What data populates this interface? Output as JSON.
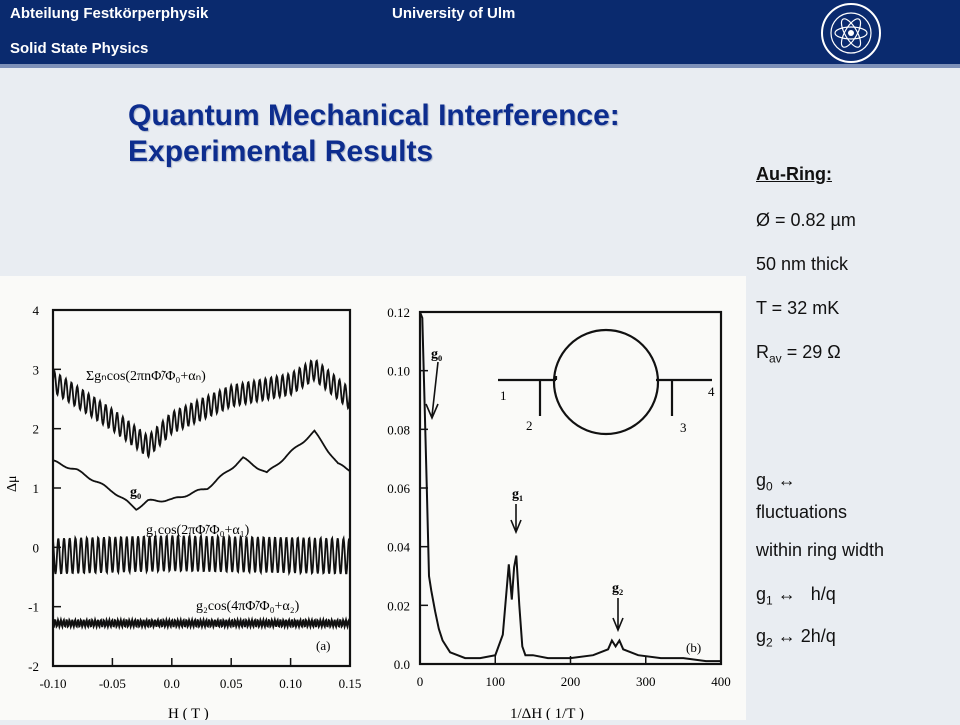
{
  "header": {
    "dept": "Abteilung Festkörperphysik",
    "dept_en": "Solid State Physics",
    "university": "University of Ulm"
  },
  "title": {
    "line1": "Quantum Mechanical Interference:",
    "line2": "Experimental Results"
  },
  "info": {
    "heading": "Au-Ring:",
    "diameter": "Ø = 0.82 µm",
    "thickness": "50 nm thick",
    "temperature": "T = 32 mK",
    "resistance_label": "R",
    "resistance_sub": "av",
    "resistance_value": "= 29 Ω",
    "g0_prefix": "g",
    "g0_sub": "0",
    "g0_text": "↔",
    "g0_line2": "fluctuations",
    "g0_line3": "within ring width",
    "g1_prefix": "g",
    "g1_sub": "1",
    "g1_text": "↔   h/q",
    "g2_prefix": "g",
    "g2_sub": "2",
    "g2_text": "↔ 2h/q"
  },
  "colors": {
    "header_bg": "#0a2a6e",
    "title": "#0d2d8e",
    "ink": "#111111"
  },
  "chart_data": [
    {
      "type": "line",
      "panel": "(a)",
      "xlabel": "H ( T )",
      "ylabel": "Δμ",
      "xlim": [
        -0.1,
        0.15
      ],
      "ylim": [
        -2,
        4
      ],
      "xticks": [
        "-0.10",
        "-0.05",
        "0.0",
        "0.05",
        "0.10",
        "0.15"
      ],
      "yticks": [
        "4",
        "3",
        "2",
        "1",
        "0",
        "-1",
        "-2"
      ],
      "annotations": [
        "Σgₙcos(2πnΦ̃/Φ₀+αₙ)",
        "g₀",
        "g₁cos(2πΦ̃/Φ₀+α₁)",
        "g₂cos(4πΦ̃/Φ₀+α₂)",
        "(a)"
      ],
      "series": [
        {
          "baseline": [
            [
              -0.1,
              2.8
            ],
            [
              -0.05,
              2.15
            ],
            [
              -0.02,
              1.7
            ],
            [
              0.0,
              2.1
            ],
            [
              0.05,
              2.55
            ],
            [
              0.1,
              2.75
            ],
            [
              0.12,
              3.0
            ],
            [
              0.15,
              2.5
            ]
          ],
          "osc_amp": 0.18,
          "osc_period": 0.0048
        },
        {
          "baseline": [
            [
              -0.1,
              1.45
            ],
            [
              -0.08,
              1.3
            ],
            [
              -0.05,
              0.95
            ],
            [
              -0.03,
              0.65
            ],
            [
              -0.02,
              0.78
            ],
            [
              0.0,
              0.8
            ],
            [
              0.03,
              1.0
            ],
            [
              0.06,
              1.5
            ],
            [
              0.08,
              1.25
            ],
            [
              0.1,
              1.6
            ],
            [
              0.12,
              1.95
            ],
            [
              0.14,
              1.4
            ],
            [
              0.15,
              1.3
            ]
          ],
          "osc_amp": 0.02,
          "osc_period": 0.02
        },
        {
          "baseline": [
            [
              -0.1,
              -0.15
            ],
            [
              0.0,
              -0.1
            ],
            [
              0.15,
              -0.15
            ]
          ],
          "osc_amp": 0.3,
          "osc_period": 0.0048
        },
        {
          "baseline": [
            [
              -0.1,
              -1.28
            ],
            [
              0.15,
              -1.28
            ]
          ],
          "osc_amp": 0.06,
          "osc_period": 0.0024
        }
      ]
    },
    {
      "type": "line",
      "panel": "(b)",
      "xlabel": "1/ΔH ( 1/T )",
      "xlim": [
        0,
        400
      ],
      "ylim": [
        0,
        0.12
      ],
      "xticks": [
        "0",
        "100",
        "200",
        "300",
        "400"
      ],
      "yticks": [
        "0.12",
        "0.10",
        "0.08",
        "0.06",
        "0.04",
        "0.02",
        "0.0"
      ],
      "annotations": [
        "g₀",
        "g₁",
        "g₂",
        "(b)"
      ],
      "inset_labels": [
        "1",
        "2",
        "3",
        "4"
      ],
      "x": [
        0,
        3,
        6,
        9,
        12,
        15,
        20,
        25,
        30,
        40,
        50,
        60,
        80,
        100,
        110,
        118,
        122,
        125,
        128,
        132,
        136,
        140,
        150,
        170,
        200,
        230,
        250,
        255,
        260,
        265,
        270,
        290,
        320,
        350,
        380,
        400
      ],
      "y": [
        0.12,
        0.118,
        0.09,
        0.06,
        0.03,
        0.025,
        0.018,
        0.012,
        0.008,
        0.004,
        0.003,
        0.002,
        0.002,
        0.003,
        0.01,
        0.034,
        0.022,
        0.033,
        0.037,
        0.02,
        0.006,
        0.003,
        0.003,
        0.002,
        0.002,
        0.003,
        0.005,
        0.008,
        0.006,
        0.008,
        0.005,
        0.003,
        0.002,
        0.002,
        0.001,
        0.001
      ]
    }
  ]
}
